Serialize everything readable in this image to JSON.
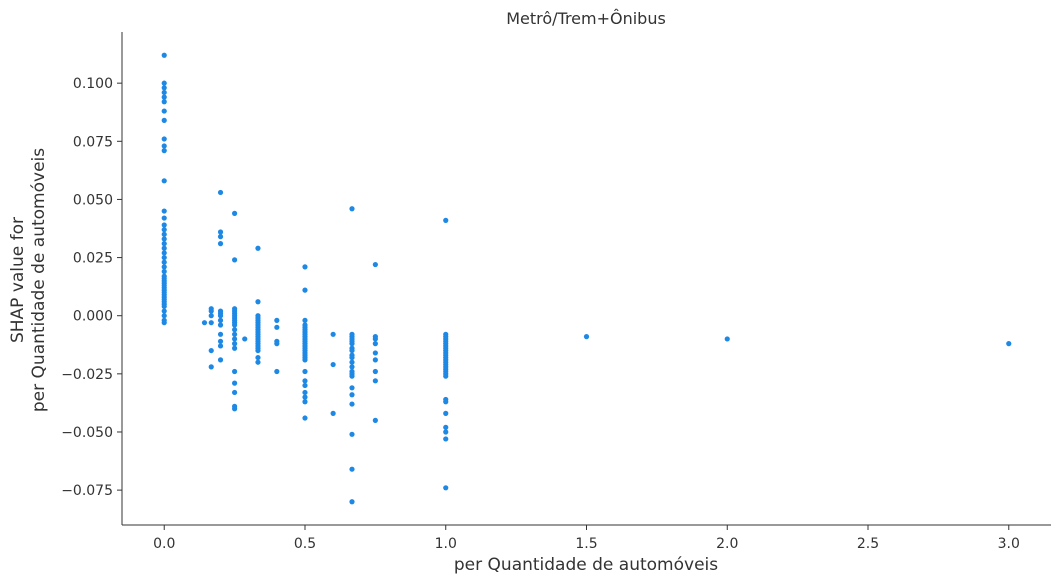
{
  "chart_data": {
    "type": "scatter",
    "title": "Metrô/Trem+Ônibus",
    "xlabel": "per Quantidade de automóveis",
    "ylabel_line1": "SHAP value for",
    "ylabel_line2": "per Quantidade de automóveis",
    "xlim": [
      -0.15,
      3.15
    ],
    "ylim": [
      -0.09,
      0.122
    ],
    "grid": false,
    "point_color": "#1E88E5",
    "x_ticks": [
      0.0,
      0.5,
      1.0,
      1.5,
      2.0,
      2.5,
      3.0
    ],
    "x_tick_labels": [
      "0.0",
      "0.5",
      "1.0",
      "1.5",
      "2.0",
      "2.5",
      "3.0"
    ],
    "y_ticks": [
      0.1,
      0.075,
      0.05,
      0.025,
      0.0,
      -0.025,
      -0.05,
      -0.075
    ],
    "y_tick_labels": [
      "0.100",
      "0.075",
      "0.050",
      "0.025",
      "0.000",
      "−0.025",
      "−0.050",
      "−0.075"
    ],
    "points": [
      [
        0.0,
        0.112
      ],
      [
        0.0,
        0.1
      ],
      [
        0.0,
        0.098
      ],
      [
        0.0,
        0.096
      ],
      [
        0.0,
        0.094
      ],
      [
        0.0,
        0.092
      ],
      [
        0.0,
        0.088
      ],
      [
        0.0,
        0.084
      ],
      [
        0.0,
        0.076
      ],
      [
        0.0,
        0.073
      ],
      [
        0.0,
        0.071
      ],
      [
        0.0,
        0.058
      ],
      [
        0.0,
        0.045
      ],
      [
        0.0,
        0.042
      ],
      [
        0.0,
        0.039
      ],
      [
        0.0,
        0.037
      ],
      [
        0.0,
        0.035
      ],
      [
        0.0,
        0.033
      ],
      [
        0.0,
        0.031
      ],
      [
        0.0,
        0.029
      ],
      [
        0.0,
        0.027
      ],
      [
        0.0,
        0.025
      ],
      [
        0.0,
        0.023
      ],
      [
        0.0,
        0.021
      ],
      [
        0.0,
        0.019
      ],
      [
        0.0,
        0.017
      ],
      [
        0.0,
        0.016
      ],
      [
        0.0,
        0.015
      ],
      [
        0.0,
        0.014
      ],
      [
        0.0,
        0.013
      ],
      [
        0.0,
        0.012
      ],
      [
        0.0,
        0.011
      ],
      [
        0.0,
        0.01
      ],
      [
        0.0,
        0.009
      ],
      [
        0.0,
        0.008
      ],
      [
        0.0,
        0.007
      ],
      [
        0.0,
        0.006
      ],
      [
        0.0,
        0.005
      ],
      [
        0.0,
        0.004
      ],
      [
        0.0,
        0.002
      ],
      [
        0.0,
        0.0
      ],
      [
        0.0,
        -0.002
      ],
      [
        0.0,
        -0.003
      ],
      [
        0.143,
        -0.003
      ],
      [
        0.167,
        0.003
      ],
      [
        0.167,
        0.002
      ],
      [
        0.167,
        0.0
      ],
      [
        0.167,
        -0.003
      ],
      [
        0.167,
        -0.015
      ],
      [
        0.167,
        -0.022
      ],
      [
        0.2,
        0.053
      ],
      [
        0.2,
        0.036
      ],
      [
        0.2,
        0.034
      ],
      [
        0.2,
        0.031
      ],
      [
        0.2,
        0.002
      ],
      [
        0.2,
        0.001
      ],
      [
        0.2,
        0.0
      ],
      [
        0.2,
        -0.002
      ],
      [
        0.2,
        -0.004
      ],
      [
        0.2,
        -0.008
      ],
      [
        0.2,
        -0.011
      ],
      [
        0.2,
        -0.013
      ],
      [
        0.2,
        -0.019
      ],
      [
        0.25,
        0.044
      ],
      [
        0.25,
        0.024
      ],
      [
        0.25,
        0.003
      ],
      [
        0.25,
        0.002
      ],
      [
        0.25,
        0.001
      ],
      [
        0.25,
        0.0
      ],
      [
        0.25,
        -0.001
      ],
      [
        0.25,
        -0.002
      ],
      [
        0.25,
        -0.003
      ],
      [
        0.25,
        -0.004
      ],
      [
        0.25,
        -0.006
      ],
      [
        0.25,
        -0.008
      ],
      [
        0.25,
        -0.01
      ],
      [
        0.25,
        -0.012
      ],
      [
        0.25,
        -0.014
      ],
      [
        0.25,
        -0.024
      ],
      [
        0.25,
        -0.029
      ],
      [
        0.25,
        -0.033
      ],
      [
        0.25,
        -0.039
      ],
      [
        0.25,
        -0.04
      ],
      [
        0.286,
        -0.01
      ],
      [
        0.333,
        0.029
      ],
      [
        0.333,
        0.006
      ],
      [
        0.333,
        0.0
      ],
      [
        0.333,
        -0.001
      ],
      [
        0.333,
        -0.002
      ],
      [
        0.333,
        -0.003
      ],
      [
        0.333,
        -0.004
      ],
      [
        0.333,
        -0.005
      ],
      [
        0.333,
        -0.006
      ],
      [
        0.333,
        -0.007
      ],
      [
        0.333,
        -0.008
      ],
      [
        0.333,
        -0.009
      ],
      [
        0.333,
        -0.01
      ],
      [
        0.333,
        -0.011
      ],
      [
        0.333,
        -0.012
      ],
      [
        0.333,
        -0.013
      ],
      [
        0.333,
        -0.014
      ],
      [
        0.333,
        -0.015
      ],
      [
        0.333,
        -0.018
      ],
      [
        0.333,
        -0.02
      ],
      [
        0.4,
        -0.002
      ],
      [
        0.4,
        -0.005
      ],
      [
        0.4,
        -0.011
      ],
      [
        0.4,
        -0.012
      ],
      [
        0.4,
        -0.024
      ],
      [
        0.5,
        0.021
      ],
      [
        0.5,
        0.011
      ],
      [
        0.5,
        -0.002
      ],
      [
        0.5,
        -0.004
      ],
      [
        0.5,
        -0.005
      ],
      [
        0.5,
        -0.006
      ],
      [
        0.5,
        -0.007
      ],
      [
        0.5,
        -0.008
      ],
      [
        0.5,
        -0.009
      ],
      [
        0.5,
        -0.01
      ],
      [
        0.5,
        -0.011
      ],
      [
        0.5,
        -0.012
      ],
      [
        0.5,
        -0.013
      ],
      [
        0.5,
        -0.014
      ],
      [
        0.5,
        -0.015
      ],
      [
        0.5,
        -0.016
      ],
      [
        0.5,
        -0.017
      ],
      [
        0.5,
        -0.018
      ],
      [
        0.5,
        -0.019
      ],
      [
        0.5,
        -0.024
      ],
      [
        0.5,
        -0.028
      ],
      [
        0.5,
        -0.03
      ],
      [
        0.5,
        -0.033
      ],
      [
        0.5,
        -0.035
      ],
      [
        0.5,
        -0.037
      ],
      [
        0.5,
        -0.044
      ],
      [
        0.6,
        -0.008
      ],
      [
        0.6,
        -0.021
      ],
      [
        0.6,
        -0.042
      ],
      [
        0.667,
        0.046
      ],
      [
        0.667,
        -0.008
      ],
      [
        0.667,
        -0.009
      ],
      [
        0.667,
        -0.01
      ],
      [
        0.667,
        -0.011
      ],
      [
        0.667,
        -0.012
      ],
      [
        0.667,
        -0.014
      ],
      [
        0.667,
        -0.015
      ],
      [
        0.667,
        -0.017
      ],
      [
        0.667,
        -0.018
      ],
      [
        0.667,
        -0.02
      ],
      [
        0.667,
        -0.022
      ],
      [
        0.667,
        -0.024
      ],
      [
        0.667,
        -0.025
      ],
      [
        0.667,
        -0.026
      ],
      [
        0.667,
        -0.031
      ],
      [
        0.667,
        -0.034
      ],
      [
        0.667,
        -0.038
      ],
      [
        0.667,
        -0.051
      ],
      [
        0.667,
        -0.066
      ],
      [
        0.667,
        -0.08
      ],
      [
        0.75,
        0.022
      ],
      [
        0.75,
        -0.009
      ],
      [
        0.75,
        -0.01
      ],
      [
        0.75,
        -0.012
      ],
      [
        0.75,
        -0.016
      ],
      [
        0.75,
        -0.019
      ],
      [
        0.75,
        -0.024
      ],
      [
        0.75,
        -0.028
      ],
      [
        0.75,
        -0.045
      ],
      [
        1.0,
        0.041
      ],
      [
        1.0,
        -0.008
      ],
      [
        1.0,
        -0.009
      ],
      [
        1.0,
        -0.01
      ],
      [
        1.0,
        -0.011
      ],
      [
        1.0,
        -0.012
      ],
      [
        1.0,
        -0.013
      ],
      [
        1.0,
        -0.014
      ],
      [
        1.0,
        -0.015
      ],
      [
        1.0,
        -0.016
      ],
      [
        1.0,
        -0.017
      ],
      [
        1.0,
        -0.018
      ],
      [
        1.0,
        -0.019
      ],
      [
        1.0,
        -0.02
      ],
      [
        1.0,
        -0.021
      ],
      [
        1.0,
        -0.022
      ],
      [
        1.0,
        -0.023
      ],
      [
        1.0,
        -0.024
      ],
      [
        1.0,
        -0.025
      ],
      [
        1.0,
        -0.026
      ],
      [
        1.0,
        -0.036
      ],
      [
        1.0,
        -0.037
      ],
      [
        1.0,
        -0.042
      ],
      [
        1.0,
        -0.048
      ],
      [
        1.0,
        -0.05
      ],
      [
        1.0,
        -0.053
      ],
      [
        1.0,
        -0.074
      ],
      [
        1.5,
        -0.009
      ],
      [
        2.0,
        -0.01
      ],
      [
        3.0,
        -0.012
      ]
    ]
  }
}
